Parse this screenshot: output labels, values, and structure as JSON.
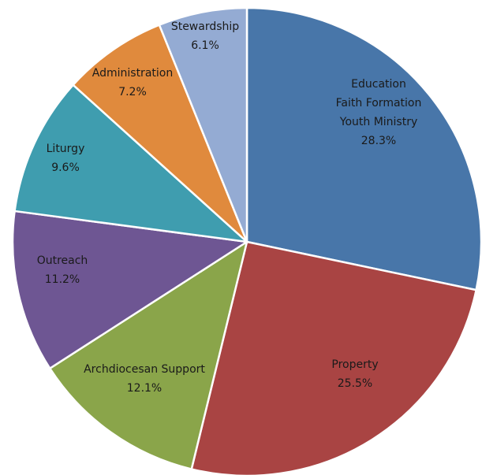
{
  "chart_data": {
    "type": "pie",
    "title": "",
    "start_angle_deg": 0,
    "direction": "clockwise",
    "slices": [
      {
        "lines": [
          "Education",
          "Faith Formation",
          "Youth Ministry"
        ],
        "pct_label": "28.3%",
        "value": 28.3,
        "color": "#4876A9"
      },
      {
        "lines": [
          "Property"
        ],
        "pct_label": "25.5%",
        "value": 25.5,
        "color": "#A94443"
      },
      {
        "lines": [
          "Archdiocesan Support"
        ],
        "pct_label": "12.1%",
        "value": 12.1,
        "color": "#8AA54A"
      },
      {
        "lines": [
          "Outreach"
        ],
        "pct_label": "11.2%",
        "value": 11.2,
        "color": "#6E5693"
      },
      {
        "lines": [
          "Liturgy"
        ],
        "pct_label": "9.6%",
        "value": 9.6,
        "color": "#3F9DAF"
      },
      {
        "lines": [
          "Administration"
        ],
        "pct_label": "7.2%",
        "value": 7.2,
        "color": "#E08A3D"
      },
      {
        "lines": [
          "Stewardship"
        ],
        "pct_label": "6.1%",
        "value": 6.1,
        "color": "#94ABD3"
      }
    ]
  }
}
